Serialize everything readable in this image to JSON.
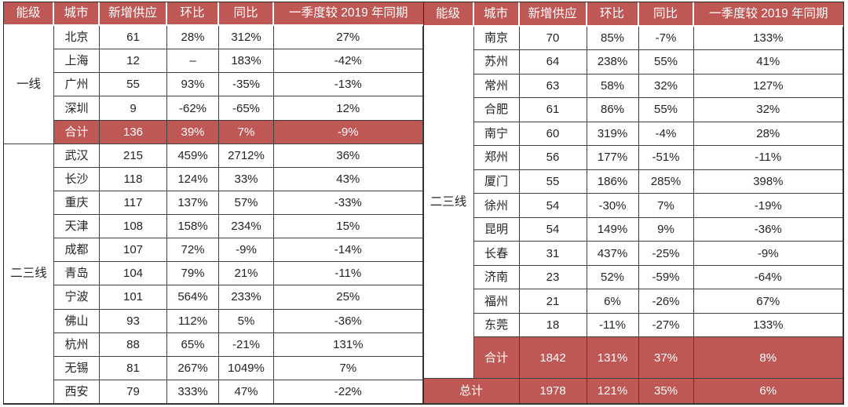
{
  "colors": {
    "accent_red": "#BF5855",
    "border_inner": "#3f3f3f",
    "border_outer": "#2a2a2a",
    "text_dark": "#242424"
  },
  "headers": [
    "能级",
    "城市",
    "新增供应",
    "环比",
    "同比",
    "一季度较 2019 年同期"
  ],
  "left": {
    "tier1": {
      "label": "一线",
      "rows": [
        {
          "city": "北京",
          "supply": "61",
          "mom": "28%",
          "yoy": "312%",
          "vs2019": "27%"
        },
        {
          "city": "上海",
          "supply": "12",
          "mom": "–",
          "yoy": "183%",
          "vs2019": "-42%"
        },
        {
          "city": "广州",
          "supply": "55",
          "mom": "93%",
          "yoy": "-35%",
          "vs2019": "-13%"
        },
        {
          "city": "深圳",
          "supply": "9",
          "mom": "-62%",
          "yoy": "-65%",
          "vs2019": "12%"
        }
      ],
      "total": {
        "label": "合计",
        "supply": "136",
        "mom": "39%",
        "yoy": "7%",
        "vs2019": "-9%"
      }
    },
    "tier23": {
      "label": "二三线",
      "rows": [
        {
          "city": "武汉",
          "supply": "215",
          "mom": "459%",
          "yoy": "2712%",
          "vs2019": "36%"
        },
        {
          "city": "长沙",
          "supply": "118",
          "mom": "124%",
          "yoy": "33%",
          "vs2019": "43%"
        },
        {
          "city": "重庆",
          "supply": "117",
          "mom": "137%",
          "yoy": "57%",
          "vs2019": "-33%"
        },
        {
          "city": "天津",
          "supply": "108",
          "mom": "158%",
          "yoy": "234%",
          "vs2019": "15%"
        },
        {
          "city": "成都",
          "supply": "107",
          "mom": "72%",
          "yoy": "-9%",
          "vs2019": "-14%"
        },
        {
          "city": "青岛",
          "supply": "104",
          "mom": "79%",
          "yoy": "21%",
          "vs2019": "-11%"
        },
        {
          "city": "宁波",
          "supply": "101",
          "mom": "564%",
          "yoy": "233%",
          "vs2019": "25%"
        },
        {
          "city": "佛山",
          "supply": "93",
          "mom": "112%",
          "yoy": "5%",
          "vs2019": "-36%"
        },
        {
          "city": "杭州",
          "supply": "88",
          "mom": "65%",
          "yoy": "-21%",
          "vs2019": "131%"
        },
        {
          "city": "无锡",
          "supply": "81",
          "mom": "267%",
          "yoy": "1049%",
          "vs2019": "7%"
        },
        {
          "city": "西安",
          "supply": "79",
          "mom": "333%",
          "yoy": "47%",
          "vs2019": "-22%"
        }
      ]
    }
  },
  "right": {
    "tier23": {
      "label": "二三线",
      "rows": [
        {
          "city": "南京",
          "supply": "70",
          "mom": "85%",
          "yoy": "-7%",
          "vs2019": "133%"
        },
        {
          "city": "苏州",
          "supply": "64",
          "mom": "238%",
          "yoy": "55%",
          "vs2019": "41%"
        },
        {
          "city": "常州",
          "supply": "63",
          "mom": "58%",
          "yoy": "32%",
          "vs2019": "127%"
        },
        {
          "city": "合肥",
          "supply": "61",
          "mom": "86%",
          "yoy": "55%",
          "vs2019": "32%"
        },
        {
          "city": "南宁",
          "supply": "60",
          "mom": "319%",
          "yoy": "-4%",
          "vs2019": "28%"
        },
        {
          "city": "郑州",
          "supply": "56",
          "mom": "177%",
          "yoy": "-51%",
          "vs2019": "-11%"
        },
        {
          "city": "厦门",
          "supply": "55",
          "mom": "186%",
          "yoy": "285%",
          "vs2019": "398%"
        },
        {
          "city": "徐州",
          "supply": "54",
          "mom": "-30%",
          "yoy": "7%",
          "vs2019": "-19%"
        },
        {
          "city": "昆明",
          "supply": "54",
          "mom": "149%",
          "yoy": "9%",
          "vs2019": "-36%"
        },
        {
          "city": "长春",
          "supply": "31",
          "mom": "437%",
          "yoy": "-25%",
          "vs2019": "-9%"
        },
        {
          "city": "济南",
          "supply": "23",
          "mom": "52%",
          "yoy": "-59%",
          "vs2019": "-64%"
        },
        {
          "city": "福州",
          "supply": "21",
          "mom": "6%",
          "yoy": "-26%",
          "vs2019": "67%"
        },
        {
          "city": "东莞",
          "supply": "18",
          "mom": "-11%",
          "yoy": "-27%",
          "vs2019": "133%"
        }
      ],
      "total": {
        "label": "合计",
        "supply": "1842",
        "mom": "131%",
        "yoy": "37%",
        "vs2019": "8%"
      }
    },
    "grand_total": {
      "label": "总计",
      "supply": "1978",
      "mom": "121%",
      "yoy": "35%",
      "vs2019": "6%"
    }
  },
  "chart_data": {
    "type": "table",
    "columns": [
      "能级",
      "城市",
      "新增供应",
      "环比",
      "同比",
      "一季度较 2019 年同期"
    ],
    "rows": [
      [
        "一线",
        "北京",
        "61",
        "28%",
        "312%",
        "27%"
      ],
      [
        "一线",
        "上海",
        "12",
        "–",
        "183%",
        "-42%"
      ],
      [
        "一线",
        "广州",
        "55",
        "93%",
        "-35%",
        "-13%"
      ],
      [
        "一线",
        "深圳",
        "9",
        "-62%",
        "-65%",
        "12%"
      ],
      [
        "一线",
        "合计",
        "136",
        "39%",
        "7%",
        "-9%"
      ],
      [
        "二三线",
        "武汉",
        "215",
        "459%",
        "2712%",
        "36%"
      ],
      [
        "二三线",
        "长沙",
        "118",
        "124%",
        "33%",
        "43%"
      ],
      [
        "二三线",
        "重庆",
        "117",
        "137%",
        "57%",
        "-33%"
      ],
      [
        "二三线",
        "天津",
        "108",
        "158%",
        "234%",
        "15%"
      ],
      [
        "二三线",
        "成都",
        "107",
        "72%",
        "-9%",
        "-14%"
      ],
      [
        "二三线",
        "青岛",
        "104",
        "79%",
        "21%",
        "-11%"
      ],
      [
        "二三线",
        "宁波",
        "101",
        "564%",
        "233%",
        "25%"
      ],
      [
        "二三线",
        "佛山",
        "93",
        "112%",
        "5%",
        "-36%"
      ],
      [
        "二三线",
        "杭州",
        "88",
        "65%",
        "-21%",
        "131%"
      ],
      [
        "二三线",
        "无锡",
        "81",
        "267%",
        "1049%",
        "7%"
      ],
      [
        "二三线",
        "西安",
        "79",
        "333%",
        "47%",
        "-22%"
      ],
      [
        "二三线",
        "南京",
        "70",
        "85%",
        "-7%",
        "133%"
      ],
      [
        "二三线",
        "苏州",
        "64",
        "238%",
        "55%",
        "41%"
      ],
      [
        "二三线",
        "常州",
        "63",
        "58%",
        "32%",
        "127%"
      ],
      [
        "二三线",
        "合肥",
        "61",
        "86%",
        "55%",
        "32%"
      ],
      [
        "二三线",
        "南宁",
        "60",
        "319%",
        "-4%",
        "28%"
      ],
      [
        "二三线",
        "郑州",
        "56",
        "177%",
        "-51%",
        "-11%"
      ],
      [
        "二三线",
        "厦门",
        "55",
        "186%",
        "285%",
        "398%"
      ],
      [
        "二三线",
        "徐州",
        "54",
        "-30%",
        "7%",
        "-19%"
      ],
      [
        "二三线",
        "昆明",
        "54",
        "149%",
        "9%",
        "-36%"
      ],
      [
        "二三线",
        "长春",
        "31",
        "437%",
        "-25%",
        "-9%"
      ],
      [
        "二三线",
        "济南",
        "23",
        "52%",
        "-59%",
        "-64%"
      ],
      [
        "二三线",
        "福州",
        "21",
        "6%",
        "-26%",
        "67%"
      ],
      [
        "二三线",
        "东莞",
        "18",
        "-11%",
        "-27%",
        "133%"
      ],
      [
        "二三线",
        "合计",
        "1842",
        "131%",
        "37%",
        "8%"
      ],
      [
        "总计",
        "",
        "1978",
        "121%",
        "35%",
        "6%"
      ]
    ]
  }
}
